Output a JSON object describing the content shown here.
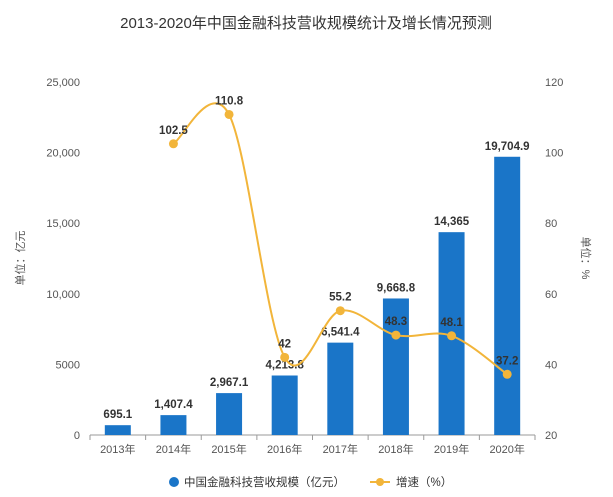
{
  "chart_data": {
    "type": "bar",
    "title": "2013-2020年中国金融科技营收规模统计及增长情况预测",
    "categories": [
      "2013年",
      "2014年",
      "2015年",
      "2016年",
      "2017年",
      "2018年",
      "2019年",
      "2020年"
    ],
    "series": [
      {
        "name": "中国金融科技营收规模（亿元）",
        "type": "bar",
        "axis": "left",
        "color": "#1a75c8",
        "values": [
          695.1,
          1407.4,
          2967.1,
          4213.8,
          6541.4,
          9668.8,
          14365,
          19704.9
        ],
        "labels": [
          "695.1",
          "1,407.4",
          "2,967.1",
          "4,213.8",
          "6,541.4",
          "9,668.8",
          "14,365",
          "19,704.9"
        ]
      },
      {
        "name": "增速（%）",
        "type": "line",
        "axis": "right",
        "color": "#f2b53a",
        "values": [
          null,
          102.5,
          110.8,
          42,
          55.2,
          48.3,
          48.1,
          37.2
        ],
        "labels": [
          "",
          "102.5",
          "110.8",
          "42",
          "55.2",
          "48.3",
          "48.1",
          "37.2"
        ]
      }
    ],
    "y_left": {
      "label": "单位：亿元",
      "ylim": [
        0,
        25000
      ],
      "ticks": [
        "0",
        "5000",
        "10,000",
        "15,000",
        "20,000",
        "25,000"
      ],
      "tick_values": [
        0,
        5000,
        10000,
        15000,
        20000,
        25000
      ]
    },
    "y_right": {
      "label": "单位：%",
      "ylim": [
        20,
        120
      ],
      "ticks": [
        "20",
        "40",
        "60",
        "80",
        "100",
        "120"
      ],
      "tick_values": [
        20,
        40,
        60,
        80,
        100,
        120
      ]
    },
    "grid": false,
    "legend_position": "bottom"
  }
}
